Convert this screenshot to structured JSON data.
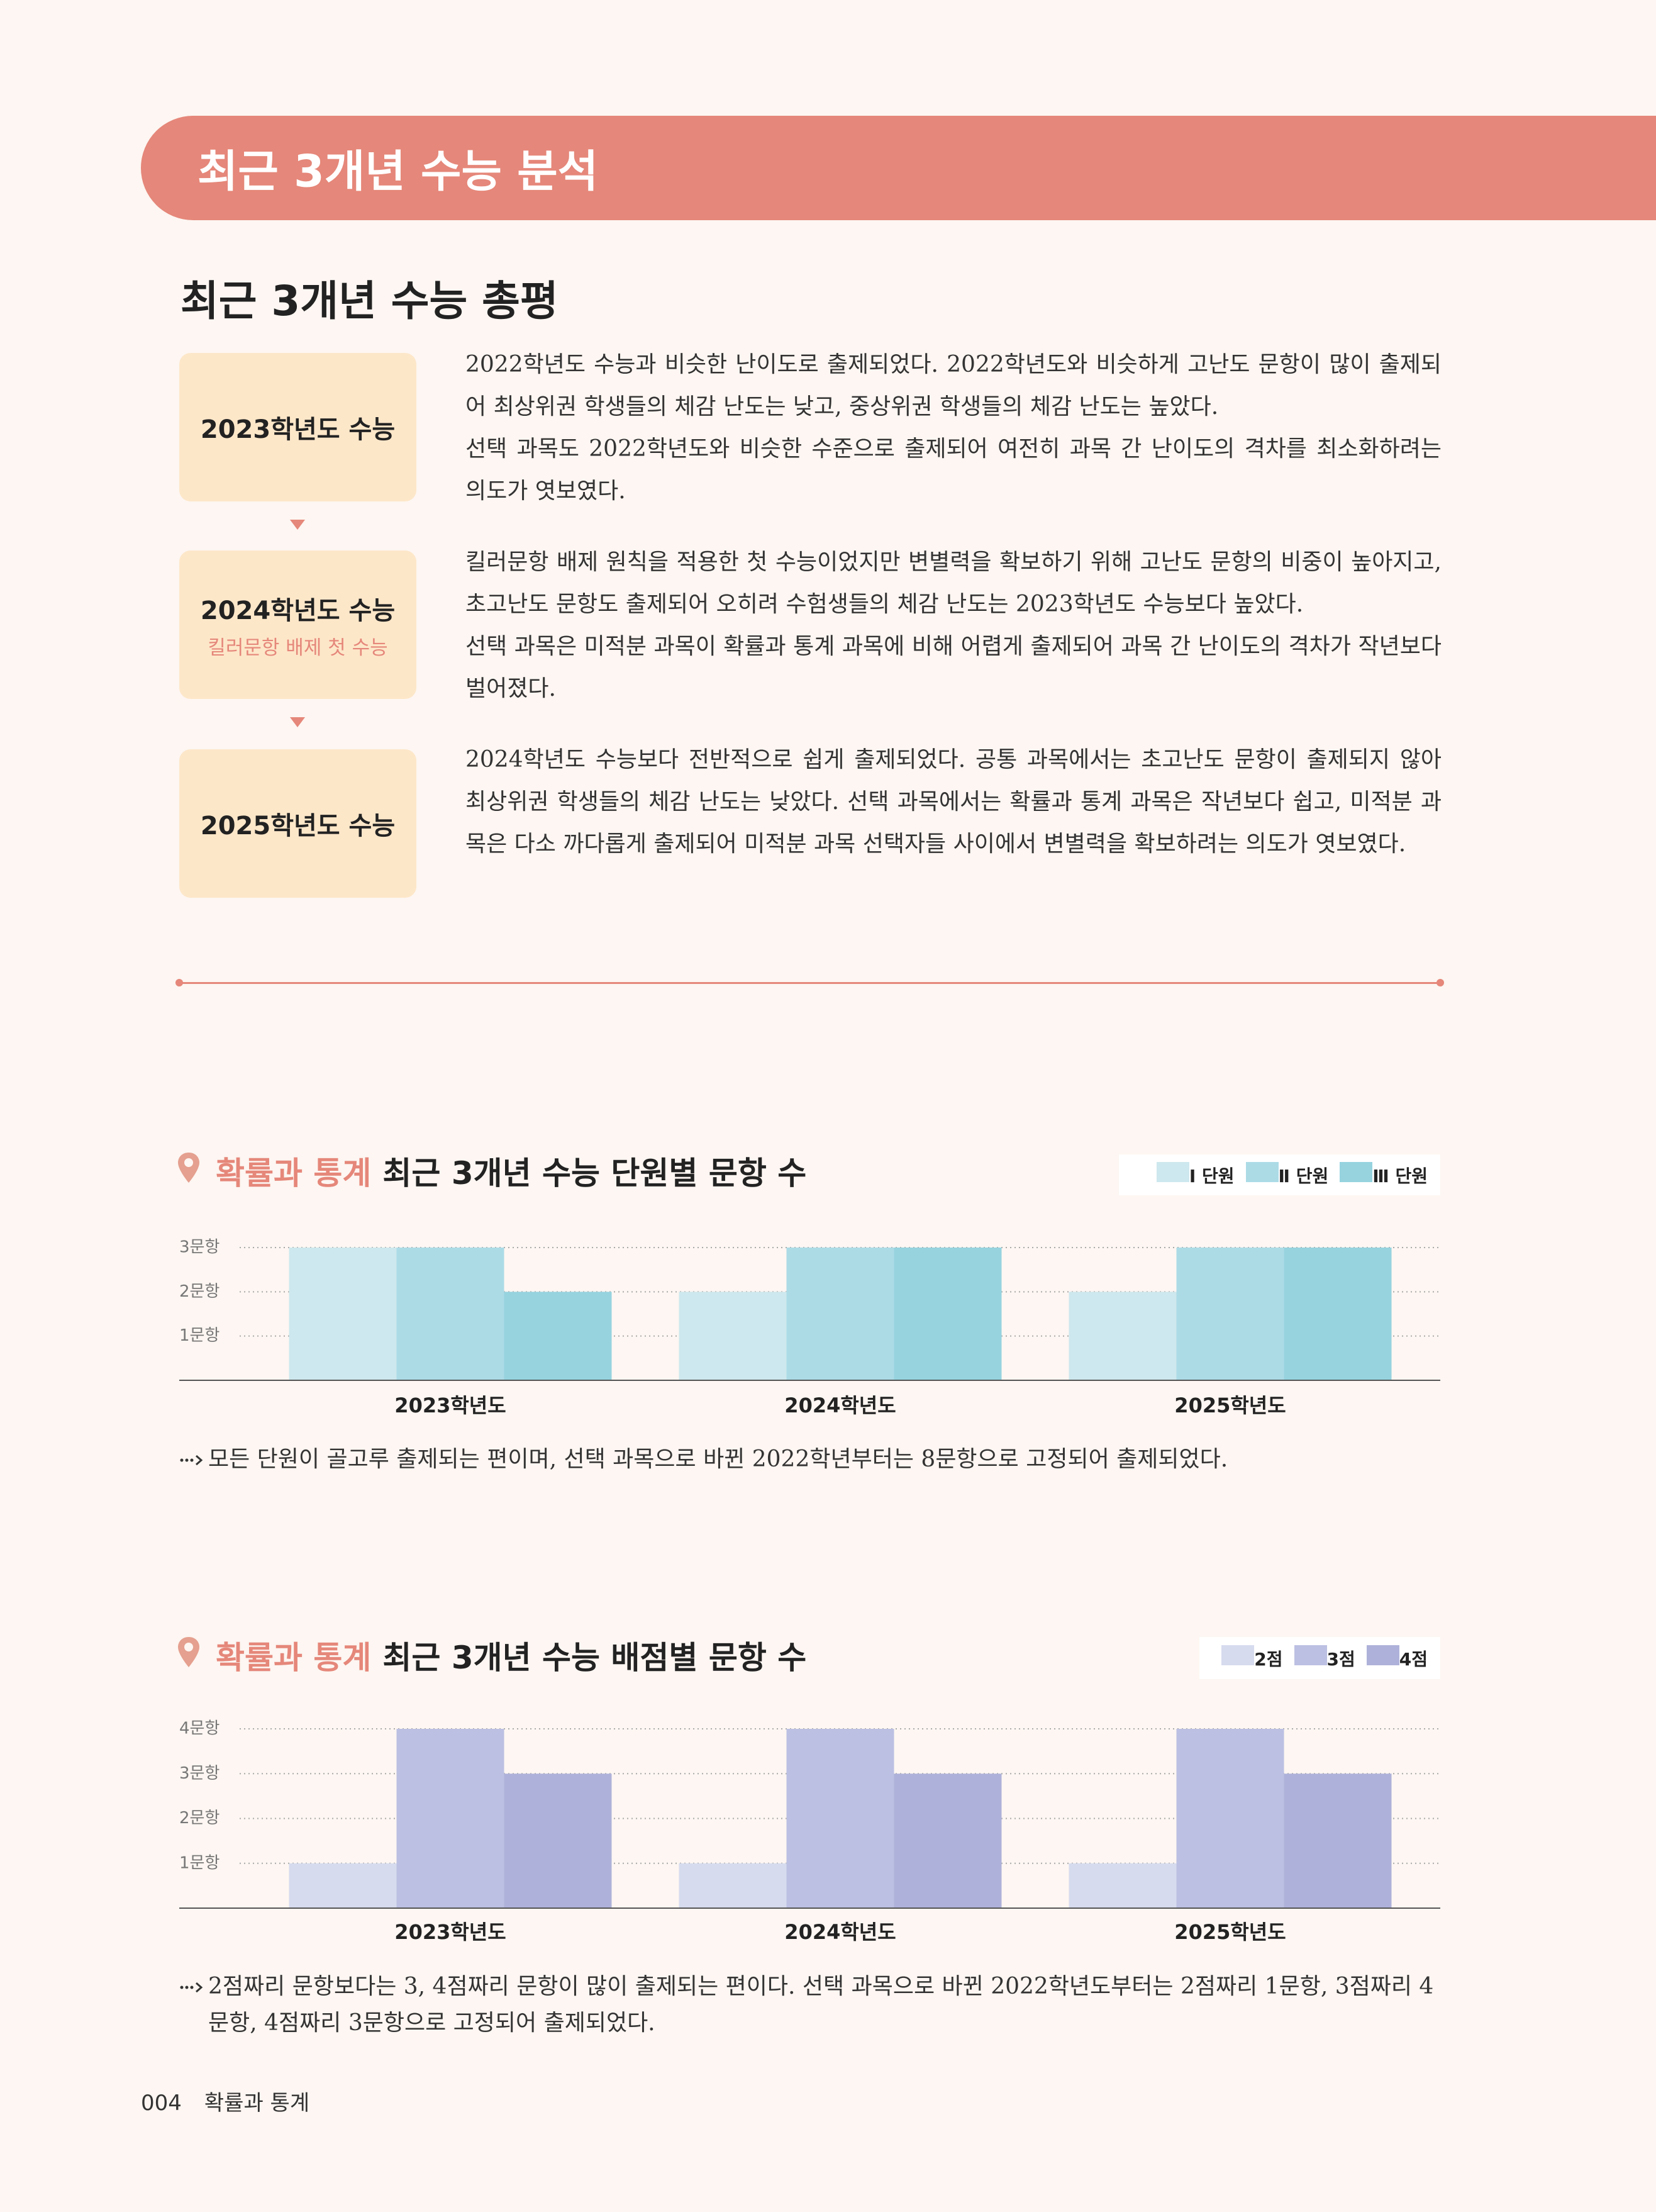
{
  "header": {
    "banner": "최근 3개년 수능 분석"
  },
  "summary": {
    "title": "최근 3개년 수능 총평",
    "entries": [
      {
        "label": "2023학년도 수능",
        "text": [
          "2022학년도 수능과 비슷한 난이도로 출제되었다. 2022학년도와 비슷하게 고난도 문항이 많이 출제되어 최상위권 학생들의 체감 난도는 낮고, 중상위권 학생들의 체감 난도는 높았다.",
          "선택 과목도 2022학년도와 비슷한 수준으로 출제되어 여전히 과목 간 난이도의 격차를 최소화하려는 의도가 엿보였다."
        ]
      },
      {
        "label": "2024학년도 수능",
        "sublabel": "킬러문항 배제 첫 수능",
        "text": [
          "킬러문항 배제 원칙을 적용한 첫 수능이었지만 변별력을 확보하기 위해 고난도 문항의 비중이 높아지고, 초고난도 문항도 출제되어 오히려 수험생들의 체감 난도는 2023학년도 수능보다 높았다.",
          "선택 과목은 미적분 과목이 확률과 통계 과목에 비해 어렵게 출제되어 과목 간 난이도의 격차가 작년보다 벌어졌다."
        ]
      },
      {
        "label": "2025학년도 수능",
        "text": [
          "2024학년도 수능보다 전반적으로 쉽게 출제되었다. 공통 과목에서는 초고난도 문항이 출제되지 않아 최상위권 학생들의 체감 난도는 낮았다. 선택 과목에서는 확률과 통계 과목은 작년보다 쉽고, 미적분 과목은 다소 까다롭게 출제되어 미적분 과목 선택자들 사이에서 변별력을 확보하려는 의도가 엿보였다."
        ]
      }
    ]
  },
  "chart_data": [
    {
      "type": "bar",
      "title_highlight": "확률과 통계",
      "title": "최근 3개년 수능 단원별 문항 수",
      "categories": [
        "2023학년도",
        "2024학년도",
        "2025학년도"
      ],
      "series": [
        {
          "name": "Ⅰ 단원",
          "color": "#cde8ee",
          "values": [
            3,
            2,
            2
          ]
        },
        {
          "name": "Ⅱ 단원",
          "color": "#acdbe6",
          "values": [
            3,
            3,
            3
          ]
        },
        {
          "name": "Ⅲ 단원",
          "color": "#96d3df",
          "values": [
            2,
            3,
            3
          ]
        }
      ],
      "ylim": [
        0,
        3
      ],
      "yticks": [
        {
          "value": 1,
          "label": "1문항"
        },
        {
          "value": 2,
          "label": "2문항"
        },
        {
          "value": 3,
          "label": "3문항"
        }
      ],
      "grid": true,
      "note": "모든 단원이 골고루 출제되는 편이며, 선택 과목으로 바뀐 2022학년부터는 8문항으로 고정되어 출제되었다."
    },
    {
      "type": "bar",
      "title_highlight": "확률과 통계",
      "title": "최근 3개년 수능 배점별 문항 수",
      "categories": [
        "2023학년도",
        "2024학년도",
        "2025학년도"
      ],
      "series": [
        {
          "name": "2점",
          "color": "#d6dbee",
          "values": [
            1,
            1,
            1
          ]
        },
        {
          "name": "3점",
          "color": "#bcc0e2",
          "values": [
            4,
            4,
            4
          ]
        },
        {
          "name": "4점",
          "color": "#aeb2da",
          "values": [
            3,
            3,
            3
          ]
        }
      ],
      "ylim": [
        0,
        4
      ],
      "yticks": [
        {
          "value": 1,
          "label": "1문항"
        },
        {
          "value": 2,
          "label": "2문항"
        },
        {
          "value": 3,
          "label": "3문항"
        },
        {
          "value": 4,
          "label": "4문항"
        }
      ],
      "grid": true,
      "note": "2점짜리 문항보다는 3, 4점짜리 문항이 많이 출제되는 편이다. 선택 과목으로 바뀐 2022학년도부터는 2점짜리 1문항, 3점짜리 4문항, 4점짜리 3문항으로 고정되어 출제되었다."
    }
  ],
  "footer": {
    "page": "004",
    "label": "확률과 통계"
  }
}
